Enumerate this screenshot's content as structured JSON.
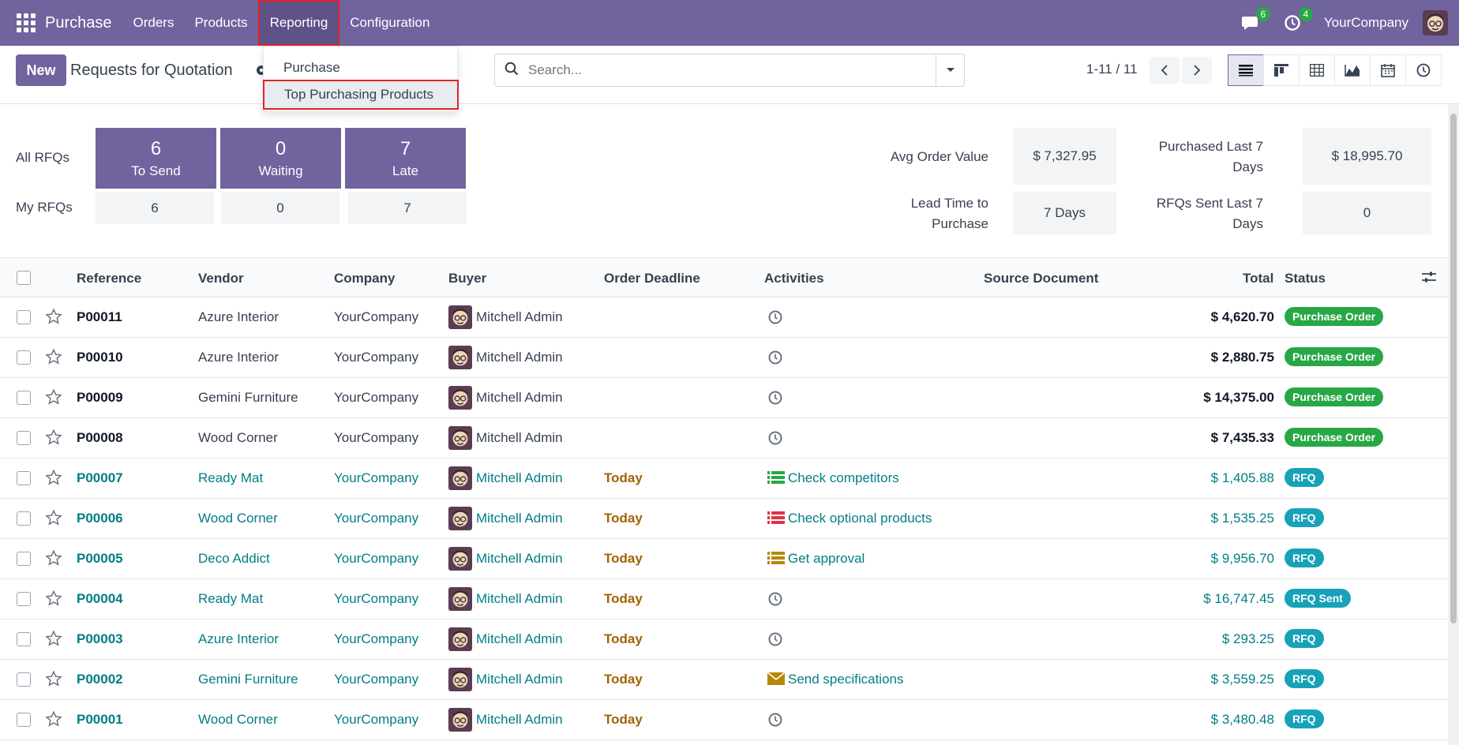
{
  "navbar": {
    "app_name": "Purchase",
    "menu": [
      {
        "label": "Orders"
      },
      {
        "label": "Products"
      },
      {
        "label": "Reporting"
      },
      {
        "label": "Configuration"
      }
    ],
    "messages_count": "6",
    "activities_count": "4",
    "company": "YourCompany"
  },
  "control": {
    "new_label": "New",
    "title": "Requests for Quotation",
    "search_placeholder": "Search...",
    "pager": "1-11 / 11"
  },
  "reporting_dropdown": {
    "items": [
      {
        "label": "Purchase"
      },
      {
        "label": "Top Purchasing Products"
      }
    ]
  },
  "dashboard": {
    "all_rfqs_label": "All RFQs",
    "my_rfqs_label": "My RFQs",
    "tiles": [
      {
        "count": "6",
        "label": "To Send",
        "my": "6"
      },
      {
        "count": "0",
        "label": "Waiting",
        "my": "0"
      },
      {
        "count": "7",
        "label": "Late",
        "my": "7"
      }
    ],
    "kpis": {
      "avg_order_label": "Avg Order Value",
      "avg_order_value": "$ 7,327.95",
      "lead_time_label_1": "Lead Time to",
      "lead_time_label_2": "Purchase",
      "lead_time_value": "7  Days",
      "purchased_label_1": "Purchased Last 7",
      "purchased_label_2": "Days",
      "purchased_value": "$ 18,995.70",
      "rfqs_sent_label_1": "RFQs Sent Last 7",
      "rfqs_sent_label_2": "Days",
      "rfqs_sent_value": "0"
    }
  },
  "table": {
    "headers": {
      "reference": "Reference",
      "vendor": "Vendor",
      "company": "Company",
      "buyer": "Buyer",
      "deadline": "Order Deadline",
      "activities": "Activities",
      "source": "Source Document",
      "total": "Total",
      "status": "Status"
    },
    "rows": [
      {
        "ref": "P00011",
        "vendor": "Azure Interior",
        "company": "YourCompany",
        "buyer": "Mitchell Admin",
        "deadline": "",
        "activity": "",
        "total": "$ 4,620.70",
        "status": "Purchase Order"
      },
      {
        "ref": "P00010",
        "vendor": "Azure Interior",
        "company": "YourCompany",
        "buyer": "Mitchell Admin",
        "deadline": "",
        "activity": "",
        "total": "$ 2,880.75",
        "status": "Purchase Order"
      },
      {
        "ref": "P00009",
        "vendor": "Gemini Furniture",
        "company": "YourCompany",
        "buyer": "Mitchell Admin",
        "deadline": "",
        "activity": "",
        "total": "$ 14,375.00",
        "status": "Purchase Order"
      },
      {
        "ref": "P00008",
        "vendor": "Wood Corner",
        "company": "YourCompany",
        "buyer": "Mitchell Admin",
        "deadline": "",
        "activity": "",
        "total": "$ 7,435.33",
        "status": "Purchase Order"
      },
      {
        "ref": "P00007",
        "vendor": "Ready Mat",
        "company": "YourCompany",
        "buyer": "Mitchell Admin",
        "deadline": "Today",
        "activity": "Check competitors",
        "total": "$ 1,405.88",
        "status": "RFQ"
      },
      {
        "ref": "P00006",
        "vendor": "Wood Corner",
        "company": "YourCompany",
        "buyer": "Mitchell Admin",
        "deadline": "Today",
        "activity": "Check optional products",
        "total": "$ 1,535.25",
        "status": "RFQ"
      },
      {
        "ref": "P00005",
        "vendor": "Deco Addict",
        "company": "YourCompany",
        "buyer": "Mitchell Admin",
        "deadline": "Today",
        "activity": "Get approval",
        "total": "$ 9,956.70",
        "status": "RFQ"
      },
      {
        "ref": "P00004",
        "vendor": "Ready Mat",
        "company": "YourCompany",
        "buyer": "Mitchell Admin",
        "deadline": "Today",
        "activity": "",
        "total": "$ 16,747.45",
        "status": "RFQ Sent"
      },
      {
        "ref": "P00003",
        "vendor": "Azure Interior",
        "company": "YourCompany",
        "buyer": "Mitchell Admin",
        "deadline": "Today",
        "activity": "",
        "total": "$ 293.25",
        "status": "RFQ"
      },
      {
        "ref": "P00002",
        "vendor": "Gemini Furniture",
        "company": "YourCompany",
        "buyer": "Mitchell Admin",
        "deadline": "Today",
        "activity": "Send specifications",
        "total": "$ 3,559.25",
        "status": "RFQ"
      },
      {
        "ref": "P00001",
        "vendor": "Wood Corner",
        "company": "YourCompany",
        "buyer": "Mitchell Admin",
        "deadline": "Today",
        "activity": "",
        "total": "$ 3,480.48",
        "status": "RFQ"
      }
    ]
  },
  "colors": {
    "brand": "#71639e",
    "link": "#017e84",
    "success": "#28a745",
    "info": "#17a2b8",
    "warning_text": "#a16207"
  }
}
